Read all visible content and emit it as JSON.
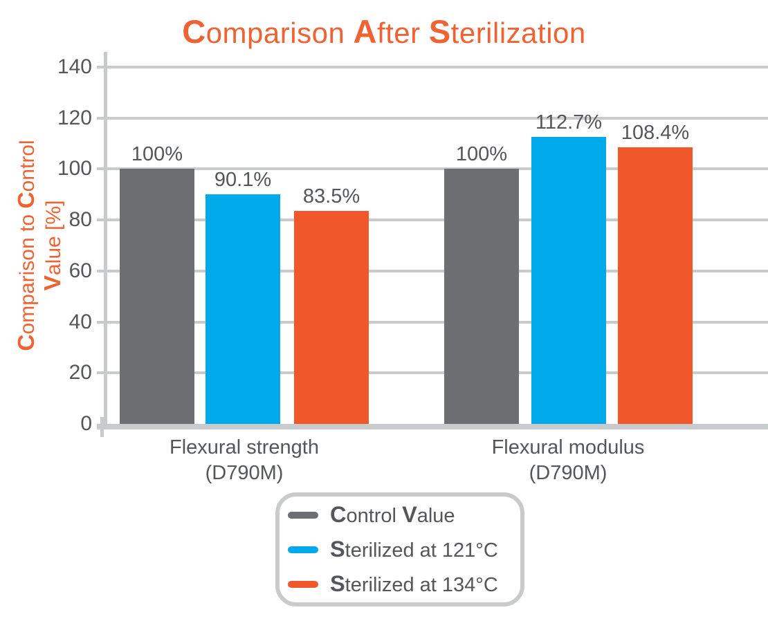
{
  "title": "Comparison After Sterilization",
  "colors": {
    "accent_orange": "#ED6334",
    "bar_gray": "#6C6E71",
    "bar_blue": "#00A9E9",
    "bar_orange": "#F0572B",
    "text_dark": "#54565A",
    "grid_gray": "#C9CACB",
    "background": "#FFFFFF"
  },
  "chart_data": {
    "type": "bar",
    "title": "Comparison After Sterilization",
    "categories": [
      "Flexural strength (D790M)",
      "Flexural modulus (D790M)"
    ],
    "series": [
      {
        "name": "Control Value",
        "color": "#6C6E71",
        "values": [
          100,
          100
        ],
        "labels": [
          "100%",
          "100%"
        ]
      },
      {
        "name": "Sterilized at 121°C",
        "color": "#00A9E9",
        "values": [
          90.1,
          112.7
        ],
        "labels": [
          "90.1%",
          "112.7%"
        ]
      },
      {
        "name": "Sterilized at 134°C",
        "color": "#F0572B",
        "values": [
          83.5,
          108.4
        ],
        "labels": [
          "83.5%",
          "108.4%"
        ]
      }
    ],
    "xlabel": "",
    "ylabel": "Comparison to Control Value [%]",
    "ylabel_lines": [
      "Comparison to Control",
      "Value [%]"
    ],
    "yticks": [
      0,
      20,
      40,
      60,
      80,
      100,
      120,
      140
    ],
    "ylim": [
      0,
      140
    ],
    "grid": true,
    "legend_position": "bottom",
    "bar_value_labels_visible": true
  }
}
